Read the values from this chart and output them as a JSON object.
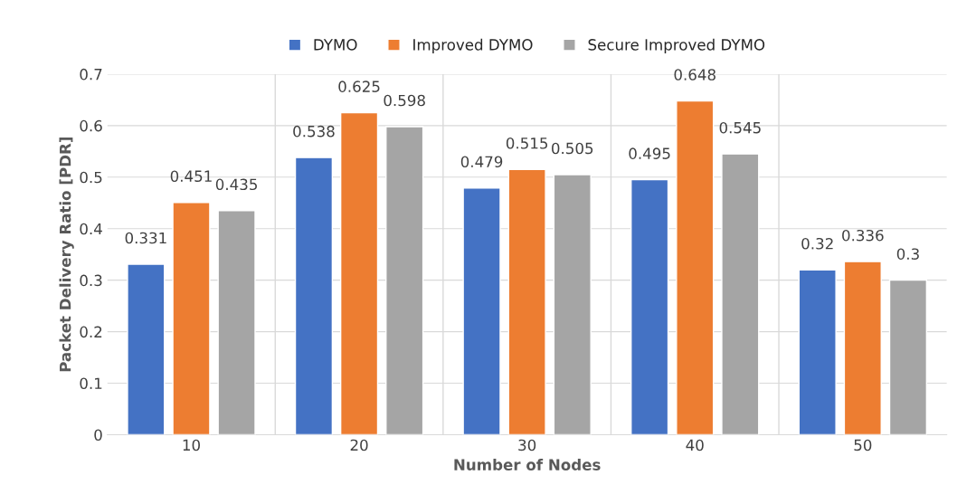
{
  "chart_data": {
    "type": "bar",
    "xlabel": "Number of Nodes",
    "ylabel": "Packet Delivery Ratio [PDR]",
    "categories": [
      "10",
      "20",
      "30",
      "40",
      "50"
    ],
    "series": [
      {
        "name": "DYMO",
        "color": "#4472c4",
        "values": [
          0.331,
          0.538,
          0.479,
          0.495,
          0.32
        ]
      },
      {
        "name": "Improved DYMO",
        "color": "#ed7d31",
        "values": [
          0.451,
          0.625,
          0.515,
          0.648,
          0.336
        ]
      },
      {
        "name": "Secure Improved DYMO",
        "color": "#a5a5a5",
        "values": [
          0.435,
          0.598,
          0.505,
          0.545,
          0.3
        ]
      }
    ],
    "ylim": [
      0,
      0.7
    ],
    "yticks": [
      0,
      0.1,
      0.2,
      0.3,
      0.4,
      0.5,
      0.6,
      0.7
    ],
    "grid": true,
    "legend": "top",
    "data_labels": true
  }
}
